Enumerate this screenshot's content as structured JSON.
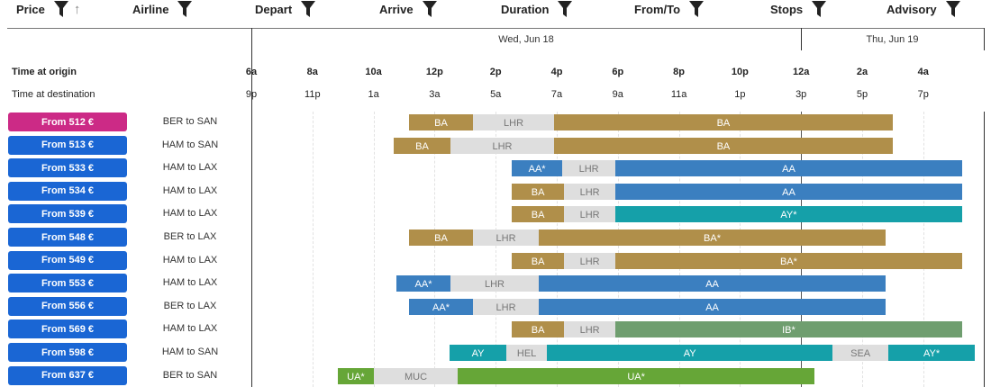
{
  "columns": [
    {
      "label": "Price",
      "sort": "up-arrow-icon"
    },
    {
      "label": "Airline"
    },
    {
      "label": "Depart"
    },
    {
      "label": "Arrive"
    },
    {
      "label": "Duration"
    },
    {
      "label": "From/To"
    },
    {
      "label": "Stops"
    },
    {
      "label": "Advisory"
    }
  ],
  "dates": [
    "Wed, Jun 18",
    "Thu, Jun 19"
  ],
  "timeline": {
    "origin_label": "Time at origin",
    "destination_label": "Time at destination",
    "start_hour": 6,
    "end_hour": 29.95,
    "day_break_hour": 24,
    "ticks": [
      {
        "h": 6,
        "origin": "6a",
        "dest": "9p"
      },
      {
        "h": 8,
        "origin": "8a",
        "dest": "11p"
      },
      {
        "h": 10,
        "origin": "10a",
        "dest": "1a"
      },
      {
        "h": 12,
        "origin": "12p",
        "dest": "3a"
      },
      {
        "h": 14,
        "origin": "2p",
        "dest": "5a"
      },
      {
        "h": 16,
        "origin": "4p",
        "dest": "7a"
      },
      {
        "h": 18,
        "origin": "6p",
        "dest": "9a"
      },
      {
        "h": 20,
        "origin": "8p",
        "dest": "11a"
      },
      {
        "h": 22,
        "origin": "10p",
        "dest": "1p"
      },
      {
        "h": 24,
        "origin": "12a",
        "dest": "3p"
      },
      {
        "h": 26,
        "origin": "2a",
        "dest": "5p"
      },
      {
        "h": 28,
        "origin": "4a",
        "dest": "7p"
      }
    ]
  },
  "colors": {
    "BA": "#b08f4a",
    "AA": "#3b7fc0",
    "AY": "#15a0a9",
    "IB": "#6f9e6f",
    "UA": "#66a637",
    "stop": "#dedede",
    "price": "#1a66d4",
    "price_selected": "#cc2a86"
  },
  "flights": [
    {
      "price": "From 512 €",
      "route": "BER to SAN",
      "selected": true,
      "segments": [
        [
          "BA",
          "BA",
          11.16,
          13.26
        ],
        [
          "stop",
          "LHR",
          13.26,
          15.91
        ],
        [
          "BA",
          "BA",
          15.91,
          27.0
        ]
      ]
    },
    {
      "price": "From 513 €",
      "route": "HAM to SAN",
      "segments": [
        [
          "BA",
          "BA",
          10.66,
          12.52
        ],
        [
          "stop",
          "LHR",
          12.52,
          15.91
        ],
        [
          "BA",
          "BA",
          15.91,
          27.0
        ]
      ]
    },
    {
      "price": "From 533 €",
      "route": "HAM to LAX",
      "segments": [
        [
          "AA",
          "AA*",
          14.53,
          16.18
        ],
        [
          "stop",
          "LHR",
          16.18,
          17.92
        ],
        [
          "AA",
          "AA",
          17.92,
          29.27
        ]
      ]
    },
    {
      "price": "From 534 €",
      "route": "HAM to LAX",
      "segments": [
        [
          "BA",
          "BA",
          14.53,
          16.24
        ],
        [
          "stop",
          "LHR",
          16.24,
          17.92
        ],
        [
          "AA",
          "AA",
          17.92,
          29.27
        ]
      ]
    },
    {
      "price": "From 539 €",
      "route": "HAM to LAX",
      "segments": [
        [
          "BA",
          "BA",
          14.53,
          16.24
        ],
        [
          "stop",
          "LHR",
          16.24,
          17.92
        ],
        [
          "AY",
          "AY*",
          17.92,
          29.27
        ]
      ]
    },
    {
      "price": "From 548 €",
      "route": "BER to LAX",
      "segments": [
        [
          "BA",
          "BA",
          11.16,
          13.26
        ],
        [
          "stop",
          "LHR",
          13.26,
          15.41
        ],
        [
          "BA",
          "BA*",
          15.41,
          26.77
        ]
      ]
    },
    {
      "price": "From 549 €",
      "route": "HAM to LAX",
      "segments": [
        [
          "BA",
          "BA",
          14.53,
          16.24
        ],
        [
          "stop",
          "LHR",
          16.24,
          17.92
        ],
        [
          "BA",
          "BA*",
          17.92,
          29.27
        ]
      ]
    },
    {
      "price": "From 553 €",
      "route": "HAM to LAX",
      "segments": [
        [
          "AA",
          "AA*",
          10.75,
          12.52
        ],
        [
          "stop",
          "LHR",
          12.52,
          15.41
        ],
        [
          "AA",
          "AA",
          15.41,
          26.77
        ]
      ]
    },
    {
      "price": "From 556 €",
      "route": "BER to LAX",
      "segments": [
        [
          "AA",
          "AA*",
          11.16,
          13.26
        ],
        [
          "stop",
          "LHR",
          13.26,
          15.41
        ],
        [
          "AA",
          "AA",
          15.41,
          26.77
        ]
      ]
    },
    {
      "price": "From 569 €",
      "route": "HAM to LAX",
      "segments": [
        [
          "BA",
          "BA",
          14.53,
          16.24
        ],
        [
          "stop",
          "LHR",
          16.24,
          17.92
        ],
        [
          "IB",
          "IB*",
          17.92,
          29.27
        ]
      ]
    },
    {
      "price": "From 598 €",
      "route": "HAM to SAN",
      "segments": [
        [
          "AY",
          "AY",
          12.49,
          14.35
        ],
        [
          "stop",
          "HEL",
          14.35,
          15.68
        ],
        [
          "AY",
          "AY",
          15.68,
          25.03
        ],
        [
          "stop",
          "SEA",
          25.03,
          26.86
        ],
        [
          "AY",
          "AY*",
          26.86,
          29.69
        ]
      ]
    },
    {
      "price": "From 637 €",
      "route": "BER to SAN",
      "segments": [
        [
          "UA",
          "UA*",
          8.83,
          10.01
        ],
        [
          "stop",
          "MUC",
          10.01,
          12.76
        ],
        [
          "UA",
          "UA*",
          12.76,
          24.44
        ]
      ]
    }
  ]
}
